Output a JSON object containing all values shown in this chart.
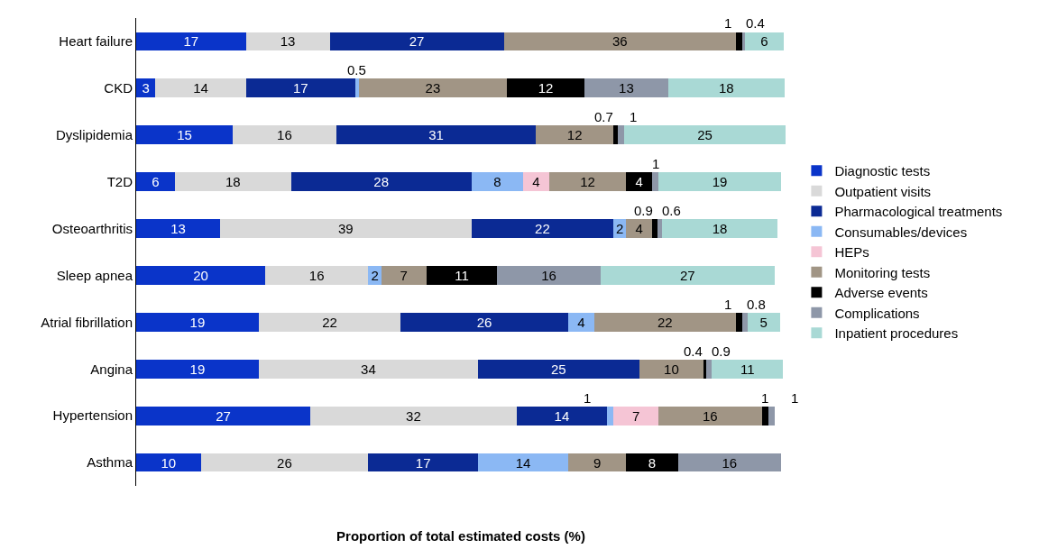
{
  "chart_data": {
    "type": "bar",
    "orientation": "horizontal",
    "stacked": true,
    "data_labels": true,
    "grid": false,
    "legend": "right",
    "tick_labels": "y",
    "xlabel": "Proportion of total estimated costs (%)",
    "categories": [
      "Heart failure",
      "CKD",
      "Dyslipidemia",
      "T2D",
      "Osteoarthritis",
      "Sleep apnea",
      "Atrial fibrillation",
      "Angina",
      "Hypertension",
      "Asthma"
    ],
    "series": [
      {
        "name": "Diagnostic tests",
        "color": "#0a34c9",
        "values": [
          17,
          3,
          15,
          6,
          13,
          20,
          19,
          19,
          27,
          10
        ]
      },
      {
        "name": "Outpatient visits",
        "color": "#d9d9d9",
        "values": [
          13,
          14,
          16,
          18,
          39,
          16,
          22,
          34,
          32,
          26
        ]
      },
      {
        "name": "Pharmacological treatments",
        "color": "#0b2a94",
        "values": [
          27,
          17,
          31,
          28,
          22,
          null,
          26,
          25,
          14,
          17
        ]
      },
      {
        "name": "Consumables/devices",
        "color": "#8bb8f4",
        "values": [
          null,
          0.5,
          null,
          8,
          2,
          2,
          4,
          null,
          1,
          14
        ]
      },
      {
        "name": "HEPs",
        "color": "#f5c5d5",
        "values": [
          null,
          null,
          null,
          4,
          null,
          null,
          null,
          null,
          7,
          null
        ]
      },
      {
        "name": "Monitoring tests",
        "color": "#a19585",
        "values": [
          36,
          23,
          12,
          12,
          4,
          7,
          22,
          10,
          16,
          9
        ]
      },
      {
        "name": "Adverse events",
        "color": "#000000",
        "values": [
          1,
          12,
          0.7,
          4,
          0.9,
          11,
          1,
          0.4,
          1,
          8
        ]
      },
      {
        "name": "Complications",
        "color": "#8e97a8",
        "values": [
          0.4,
          13,
          1,
          1,
          0.6,
          16,
          0.8,
          0.9,
          1,
          16
        ]
      },
      {
        "name": "Inpatient procedures",
        "color": "#a9d9d5",
        "values": [
          6,
          18,
          25,
          19,
          18,
          27,
          5,
          11,
          null,
          null
        ]
      }
    ]
  }
}
